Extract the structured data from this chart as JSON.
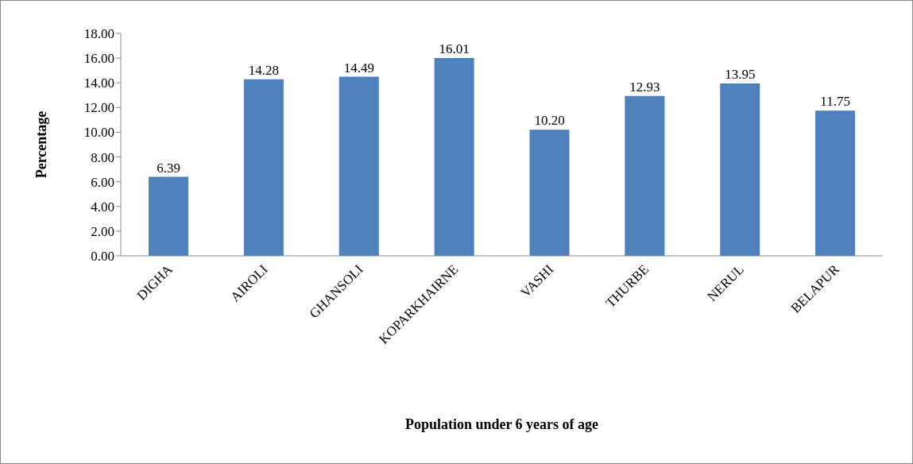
{
  "chart_data": {
    "type": "bar",
    "xlabel": "Population under 6 years of age",
    "ylabel": "Percentage",
    "categories": [
      "DIGHA",
      "AIROLI",
      "GHANSOLI",
      "KOPARKHAIRNE",
      "VASHI",
      "THURBE",
      "NERUL",
      "BELAPUR"
    ],
    "values": [
      6.39,
      14.28,
      14.49,
      16.01,
      10.2,
      12.93,
      13.95,
      11.75
    ],
    "value_labels": [
      "6.39",
      "14.28",
      "14.49",
      "16.01",
      "10.20",
      "12.93",
      "13.95",
      "11.75"
    ],
    "color": "#4f81bd",
    "ylim": [
      0,
      18
    ],
    "yticks": [
      {
        "value": 0,
        "label": "0.00"
      },
      {
        "value": 2,
        "label": "2.00"
      },
      {
        "value": 4,
        "label": "4.00"
      },
      {
        "value": 6,
        "label": "6.00"
      },
      {
        "value": 8,
        "label": "8.00"
      },
      {
        "value": 10,
        "label": "10.00"
      },
      {
        "value": 12,
        "label": "12.00"
      },
      {
        "value": 14,
        "label": "14.00"
      },
      {
        "value": 16,
        "label": "16.00"
      },
      {
        "value": 18,
        "label": "18.00"
      }
    ],
    "grid": false,
    "legend": false
  }
}
